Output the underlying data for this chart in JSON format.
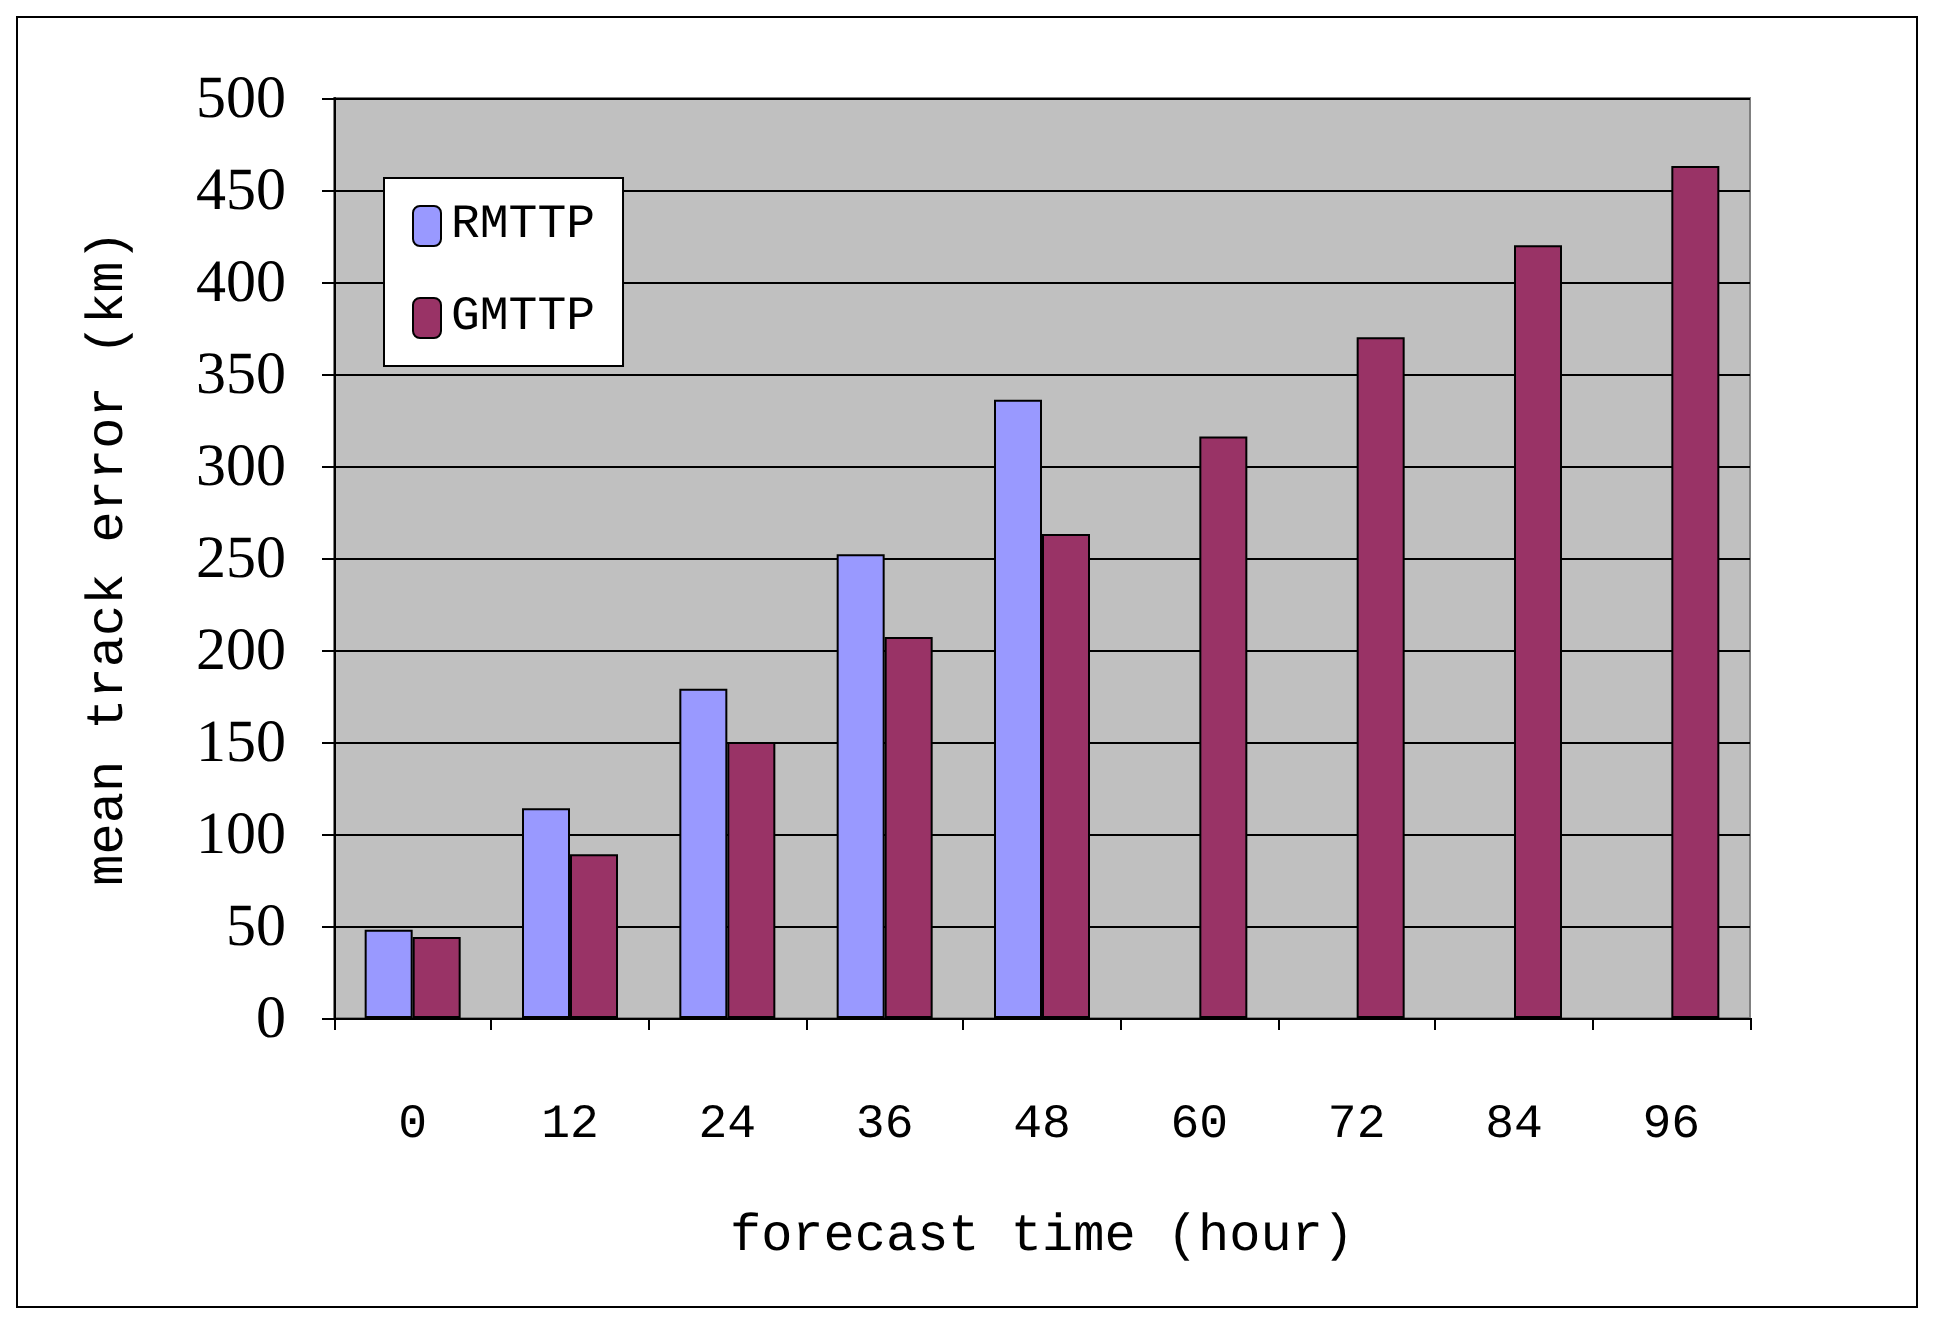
{
  "chart_data": {
    "type": "bar",
    "xlabel": "forecast time (hour)",
    "ylabel": "mean track error (km)",
    "categories": [
      "0",
      "12",
      "24",
      "36",
      "48",
      "60",
      "72",
      "84",
      "96"
    ],
    "series": [
      {
        "name": "RMTTP",
        "color": "#9999ff",
        "values": [
          48,
          114,
          179,
          252,
          336,
          null,
          null,
          null,
          null
        ]
      },
      {
        "name": "GMTTP",
        "color": "#993366",
        "values": [
          44,
          89,
          150,
          207,
          263,
          316,
          370,
          420,
          463
        ]
      }
    ],
    "ylim": [
      0,
      500
    ],
    "yticks": [
      0,
      50,
      100,
      150,
      200,
      250,
      300,
      350,
      400,
      450,
      500
    ],
    "grid": "y",
    "legend": "top left"
  }
}
